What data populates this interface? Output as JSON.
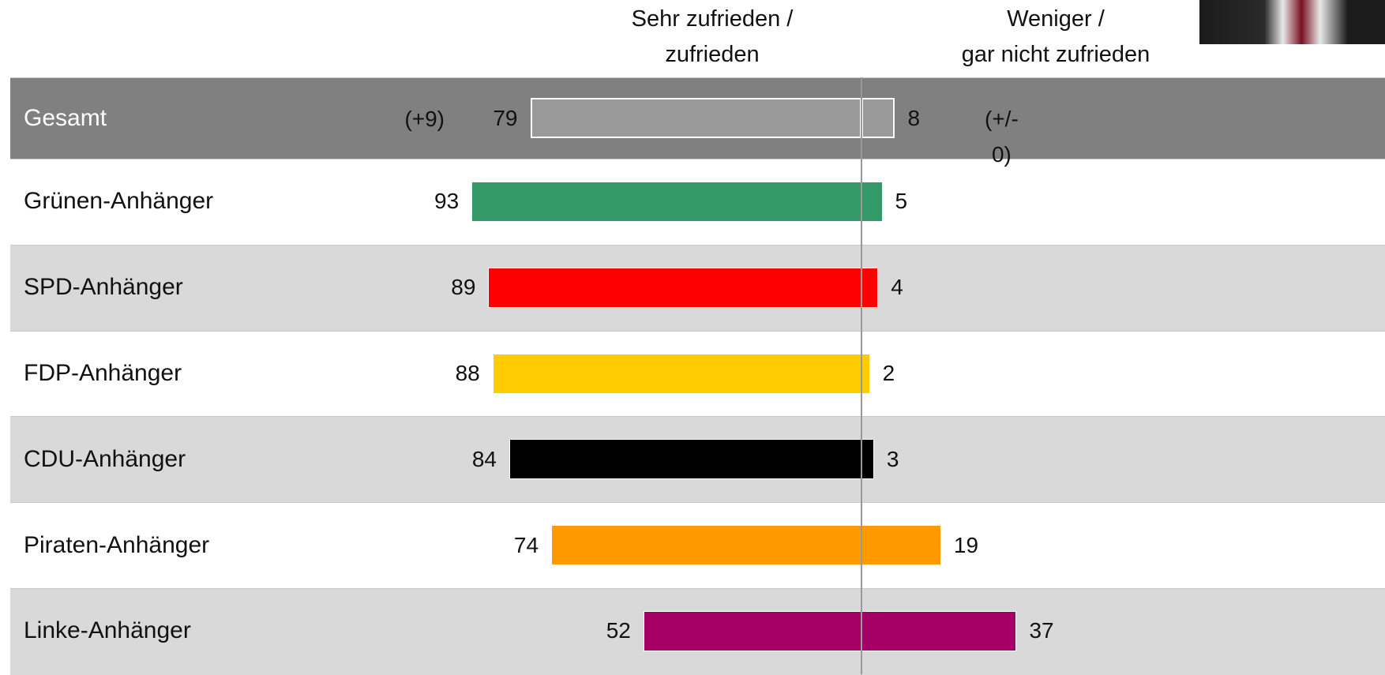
{
  "chart_data": {
    "type": "diverging_bar",
    "categories": [
      "Gesamt",
      "Grünen-Anhänger",
      "SPD-Anhänger",
      "FDP-Anhänger",
      "CDU-Anhänger",
      "Piraten-Anhänger",
      "Linke-Anhänger"
    ],
    "colors": [
      "#999999",
      "#339966",
      "#ff0000",
      "#ffcc00",
      "#000000",
      "#ff9900",
      "#a50066"
    ],
    "series": [
      {
        "name": "Sehr zufrieden /\nzufrieden",
        "side": "left",
        "values": [
          79,
          93,
          89,
          88,
          84,
          74,
          52
        ]
      },
      {
        "name": "Weniger /\ngar nicht zufrieden",
        "side": "right",
        "values": [
          8,
          5,
          4,
          2,
          3,
          19,
          37
        ]
      }
    ],
    "annotations": [
      {
        "category": "Gesamt",
        "series": "Sehr zufrieden /\nzufrieden",
        "text": "(+9)"
      },
      {
        "category": "Gesamt",
        "series": "Weniger /\ngar nicht zufrieden",
        "text": "(+/-\n0)"
      }
    ]
  }
}
